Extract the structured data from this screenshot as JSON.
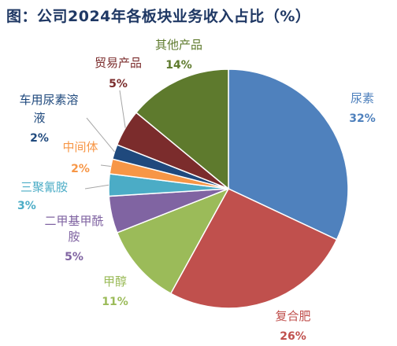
{
  "chart_data": {
    "type": "pie",
    "title": "图：公司2024年各板块业务收入占比（%）",
    "slices": [
      {
        "label": "尿素",
        "value": 32,
        "value_label": "32%",
        "color": "#4f81bd"
      },
      {
        "label": "复合肥",
        "value": 26,
        "value_label": "26%",
        "color": "#c0504d"
      },
      {
        "label": "甲醇",
        "value": 11,
        "value_label": "11%",
        "color": "#9bbb59"
      },
      {
        "label": "二甲基甲酰胺",
        "value": 5,
        "value_label": "5%",
        "color": "#8064a2"
      },
      {
        "label": "三聚氰胺",
        "value": 3,
        "value_label": "3%",
        "color": "#4bacc6"
      },
      {
        "label": "中间体",
        "value": 2,
        "value_label": "2%",
        "color": "#f79646"
      },
      {
        "label": "车用尿素溶液",
        "value": 2,
        "value_label": "2%",
        "color": "#1f497d"
      },
      {
        "label": "贸易产品",
        "value": 5,
        "value_label": "5%",
        "color": "#7b2c2c"
      },
      {
        "label": "其他产品",
        "value": 14,
        "value_label": "14%",
        "color": "#5e7a2d"
      }
    ]
  }
}
